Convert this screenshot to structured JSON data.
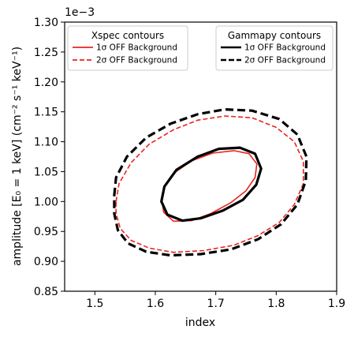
{
  "chart_data": {
    "type": "contour",
    "xlabel": "index",
    "ylabel": "amplitude [E₀ = 1 keV] (cm⁻² s⁻¹ keV⁻¹)",
    "y_offset_label": "1e−3",
    "xlim": [
      1.45,
      1.9
    ],
    "ylim": [
      0.85,
      1.3
    ],
    "y_scale_factor": 0.001,
    "x_ticks": [
      1.5,
      1.6,
      1.7,
      1.8,
      1.9
    ],
    "x_tick_labels": [
      "1.5",
      "1.6",
      "1.7",
      "1.8",
      "1.9"
    ],
    "y_ticks": [
      0.85,
      0.9,
      0.95,
      1.0,
      1.05,
      1.1,
      1.15,
      1.2,
      1.25,
      1.3
    ],
    "y_tick_labels": [
      "0.85",
      "0.90",
      "0.95",
      "1.00",
      "1.05",
      "1.10",
      "1.15",
      "1.20",
      "1.25",
      "1.30"
    ],
    "grid": false,
    "colors": {
      "xspec": "#e8251f",
      "gammapy": "#000000"
    },
    "legends": [
      {
        "title": "Xspec contours",
        "position": "top-left",
        "entries": [
          {
            "label": "1σ OFF Background",
            "color": "#e8251f",
            "style": "solid"
          },
          {
            "label": "2σ OFF Background",
            "color": "#e8251f",
            "style": "dashed"
          }
        ]
      },
      {
        "title": "Gammapy contours",
        "position": "top-right",
        "entries": [
          {
            "label": "1σ OFF Background",
            "color": "#000000",
            "style": "solid"
          },
          {
            "label": "2σ OFF Background",
            "color": "#000000",
            "style": "dashed"
          }
        ]
      }
    ],
    "series": [
      {
        "color": "#e8251f",
        "style": "solid",
        "width": 1.6,
        "points": [
          [
            1.61,
            1.005
          ],
          [
            1.615,
            1.025
          ],
          [
            1.63,
            1.047
          ],
          [
            1.66,
            1.068
          ],
          [
            1.695,
            1.081
          ],
          [
            1.73,
            1.085
          ],
          [
            1.755,
            1.08
          ],
          [
            1.768,
            1.063
          ],
          [
            1.765,
            1.04
          ],
          [
            1.75,
            1.018
          ],
          [
            1.725,
            0.998
          ],
          [
            1.692,
            0.98
          ],
          [
            1.66,
            0.968
          ],
          [
            1.63,
            0.967
          ],
          [
            1.614,
            0.982
          ],
          [
            1.61,
            1.005
          ]
        ]
      },
      {
        "color": "#000000",
        "style": "solid",
        "width": 3.2,
        "points": [
          [
            1.61,
            1.0
          ],
          [
            1.615,
            1.025
          ],
          [
            1.635,
            1.053
          ],
          [
            1.67,
            1.075
          ],
          [
            1.705,
            1.088
          ],
          [
            1.74,
            1.09
          ],
          [
            1.765,
            1.08
          ],
          [
            1.775,
            1.055
          ],
          [
            1.767,
            1.028
          ],
          [
            1.745,
            1.003
          ],
          [
            1.712,
            0.985
          ],
          [
            1.675,
            0.972
          ],
          [
            1.645,
            0.968
          ],
          [
            1.62,
            0.978
          ],
          [
            1.61,
            1.0
          ]
        ]
      },
      {
        "color": "#e8251f",
        "style": "dashed",
        "width": 1.6,
        "points": [
          [
            1.535,
            1.0
          ],
          [
            1.54,
            1.03
          ],
          [
            1.56,
            1.065
          ],
          [
            1.59,
            1.096
          ],
          [
            1.63,
            1.12
          ],
          [
            1.67,
            1.136
          ],
          [
            1.715,
            1.143
          ],
          [
            1.76,
            1.14
          ],
          [
            1.8,
            1.124
          ],
          [
            1.83,
            1.1
          ],
          [
            1.845,
            1.067
          ],
          [
            1.845,
            1.03
          ],
          [
            1.83,
            0.995
          ],
          [
            1.805,
            0.965
          ],
          [
            1.77,
            0.943
          ],
          [
            1.73,
            0.927
          ],
          [
            1.68,
            0.918
          ],
          [
            1.63,
            0.915
          ],
          [
            1.59,
            0.922
          ],
          [
            1.56,
            0.935
          ],
          [
            1.542,
            0.955
          ],
          [
            1.535,
            0.98
          ],
          [
            1.535,
            1.0
          ]
        ]
      },
      {
        "color": "#000000",
        "style": "dashed",
        "width": 3.2,
        "points": [
          [
            1.532,
            1.01
          ],
          [
            1.535,
            1.04
          ],
          [
            1.553,
            1.075
          ],
          [
            1.585,
            1.107
          ],
          [
            1.625,
            1.13
          ],
          [
            1.67,
            1.146
          ],
          [
            1.715,
            1.154
          ],
          [
            1.76,
            1.152
          ],
          [
            1.805,
            1.138
          ],
          [
            1.835,
            1.112
          ],
          [
            1.85,
            1.075
          ],
          [
            1.849,
            1.035
          ],
          [
            1.835,
            0.995
          ],
          [
            1.808,
            0.962
          ],
          [
            1.77,
            0.937
          ],
          [
            1.725,
            0.92
          ],
          [
            1.675,
            0.912
          ],
          [
            1.625,
            0.91
          ],
          [
            1.585,
            0.916
          ],
          [
            1.555,
            0.93
          ],
          [
            1.538,
            0.952
          ],
          [
            1.532,
            0.98
          ],
          [
            1.532,
            1.01
          ]
        ]
      }
    ]
  }
}
